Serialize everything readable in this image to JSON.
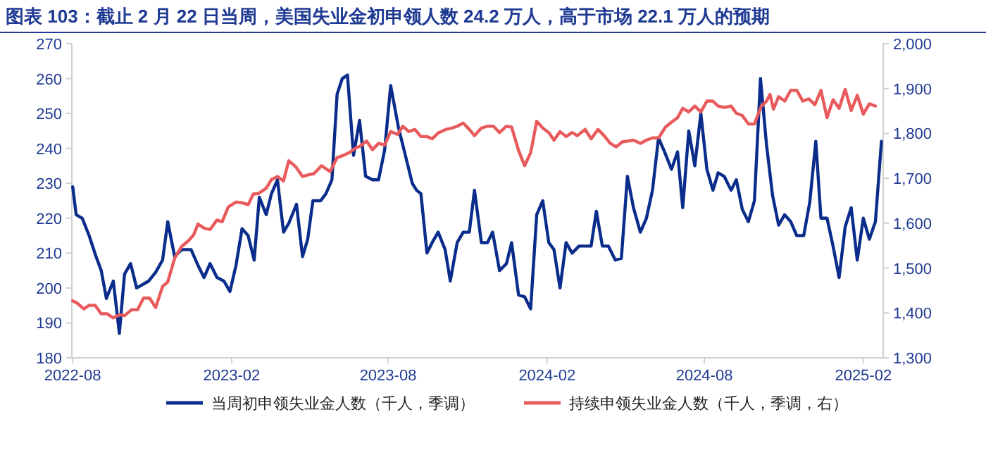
{
  "chart_data": {
    "type": "line",
    "title": "图表 103：截止 2 月 22 日当周，美国失业金初申领人数 24.2 万人，高于市场 22.1 万人的预期",
    "xlim": [
      "2022-07-31",
      "2025-02-24"
    ],
    "xticks": [
      "2022-08",
      "2023-02",
      "2023-08",
      "2024-02",
      "2024-08",
      "2025-02"
    ],
    "ylim": [
      180,
      270
    ],
    "yticks": [
      180,
      190,
      200,
      210,
      220,
      230,
      240,
      250,
      260,
      270
    ],
    "y2lim": [
      1300,
      2000
    ],
    "y2ticks": [
      {
        "value": 1300,
        "label": "1,300"
      },
      {
        "value": 1400,
        "label": "1,400"
      },
      {
        "value": 1500,
        "label": "1,500"
      },
      {
        "value": 1600,
        "label": "1,600"
      },
      {
        "value": 1700,
        "label": "1,700"
      },
      {
        "value": 1800,
        "label": "1,800"
      },
      {
        "value": 1900,
        "label": "1,900"
      },
      {
        "value": 2000,
        "label": "2,000"
      }
    ],
    "grid": false,
    "legend": "bottom",
    "marker": "none",
    "line_style": "solid",
    "series": [
      {
        "name": "当周初申领失业金人数（千人，季调）",
        "color": "#0a2d8c",
        "x": [
          "2022-08-01",
          "2022-08-05",
          "2022-08-12",
          "2022-08-20",
          "2022-08-28",
          "2022-09-03",
          "2022-09-09",
          "2022-09-17",
          "2022-09-24",
          "2022-09-30",
          "2022-10-07",
          "2022-10-14",
          "2022-10-28",
          "2022-11-05",
          "2022-11-13",
          "2022-11-19",
          "2022-11-27",
          "2022-12-05",
          "2022-12-16",
          "2022-12-24",
          "2022-12-31",
          "2023-01-07",
          "2023-01-15",
          "2023-01-23",
          "2023-01-30",
          "2023-02-06",
          "2023-02-13",
          "2023-02-20",
          "2023-02-27",
          "2023-03-05",
          "2023-03-13",
          "2023-03-19",
          "2023-03-26",
          "2023-04-02",
          "2023-04-08",
          "2023-04-17",
          "2023-04-24",
          "2023-04-30",
          "2023-05-06",
          "2023-05-15",
          "2023-05-21",
          "2023-05-28",
          "2023-06-03",
          "2023-06-09",
          "2023-06-15",
          "2023-06-22",
          "2023-06-29",
          "2023-07-06",
          "2023-07-14",
          "2023-07-21",
          "2023-07-28",
          "2023-08-04",
          "2023-08-13",
          "2023-08-21",
          "2023-08-29",
          "2023-09-03",
          "2023-09-08",
          "2023-09-15",
          "2023-09-21",
          "2023-09-28",
          "2023-10-06",
          "2023-10-12",
          "2023-10-20",
          "2023-10-27",
          "2023-11-03",
          "2023-11-09",
          "2023-11-17",
          "2023-11-24",
          "2023-11-30",
          "2023-12-08",
          "2023-12-16",
          "2023-12-22",
          "2023-12-30",
          "2024-01-06",
          "2024-01-13",
          "2024-01-20",
          "2024-01-27",
          "2024-02-03",
          "2024-02-09",
          "2024-02-16",
          "2024-02-23",
          "2024-03-01",
          "2024-03-09",
          "2024-03-23",
          "2024-03-29",
          "2024-04-05",
          "2024-04-12",
          "2024-04-20",
          "2024-04-27",
          "2024-05-04",
          "2024-05-11",
          "2024-05-19",
          "2024-05-26",
          "2024-06-02",
          "2024-06-09",
          "2024-06-16",
          "2024-06-24",
          "2024-07-01",
          "2024-07-07",
          "2024-07-14",
          "2024-07-21",
          "2024-07-28",
          "2024-08-04",
          "2024-08-11",
          "2024-08-17",
          "2024-08-24",
          "2024-09-01",
          "2024-09-07",
          "2024-09-14",
          "2024-09-21",
          "2024-09-28",
          "2024-10-05",
          "2024-10-12",
          "2024-10-19",
          "2024-10-26",
          "2024-11-02",
          "2024-11-09",
          "2024-11-16",
          "2024-11-24",
          "2024-12-01",
          "2024-12-08",
          "2024-12-14",
          "2024-12-21",
          "2024-12-28",
          "2025-01-04",
          "2025-01-11",
          "2025-01-18",
          "2025-01-25",
          "2025-02-01",
          "2025-02-08",
          "2025-02-15",
          "2025-02-22"
        ],
        "values": [
          229,
          221,
          220,
          215,
          209,
          205,
          197,
          202,
          187,
          204,
          207,
          200,
          202,
          204.5,
          208,
          219,
          209,
          211,
          211,
          206.5,
          203,
          207,
          203,
          202,
          199,
          206.5,
          217,
          215,
          208,
          226,
          221,
          227,
          231,
          216,
          218.5,
          224,
          209,
          214,
          225,
          225,
          227,
          231,
          255.5,
          260,
          261,
          238,
          248,
          232,
          231,
          231,
          239.5,
          258,
          246,
          238,
          230,
          228,
          227,
          210,
          213,
          216,
          211,
          202,
          213,
          216,
          216,
          228,
          213,
          213,
          216,
          205,
          207,
          213,
          198,
          197.5,
          194,
          221,
          225,
          213,
          211,
          200,
          213,
          210,
          212,
          212,
          222,
          212,
          212,
          208,
          208.5,
          232,
          223,
          216,
          220,
          228,
          243,
          239,
          234,
          239,
          223,
          245,
          235,
          250,
          234,
          228,
          233,
          232,
          228,
          231,
          222.5,
          219,
          225,
          260,
          241,
          226.5,
          218,
          221,
          219,
          215,
          215,
          224.5,
          242,
          220,
          220,
          212,
          203,
          217.5,
          223,
          208,
          220,
          214,
          219,
          242
        ]
      },
      {
        "name": "持续申领失业金人数（千人，季调，右）",
        "color": "#e85a5c",
        "axis": "y2",
        "x": [
          "2022-08-01",
          "2022-08-06",
          "2022-08-14",
          "2022-08-20",
          "2022-08-27",
          "2022-09-03",
          "2022-09-10",
          "2022-09-17",
          "2022-09-24",
          "2022-09-30",
          "2022-10-08",
          "2022-10-15",
          "2022-10-22",
          "2022-10-29",
          "2022-11-05",
          "2022-11-13",
          "2022-11-19",
          "2022-11-27",
          "2022-12-05",
          "2022-12-13",
          "2022-12-19",
          "2022-12-24",
          "2022-12-31",
          "2023-01-07",
          "2023-01-15",
          "2023-01-21",
          "2023-01-28",
          "2023-02-06",
          "2023-02-14",
          "2023-02-20",
          "2023-02-26",
          "2023-03-04",
          "2023-03-13",
          "2023-03-19",
          "2023-03-26",
          "2023-04-02",
          "2023-04-08",
          "2023-04-16",
          "2023-04-24",
          "2023-05-01",
          "2023-05-07",
          "2023-05-16",
          "2023-05-26",
          "2023-06-03",
          "2023-06-10",
          "2023-06-17",
          "2023-06-24",
          "2023-06-30",
          "2023-07-07",
          "2023-07-14",
          "2023-07-21",
          "2023-07-28",
          "2023-08-04",
          "2023-08-12",
          "2023-08-18",
          "2023-08-25",
          "2023-09-01",
          "2023-09-08",
          "2023-09-15",
          "2023-09-21",
          "2023-09-28",
          "2023-10-07",
          "2023-10-14",
          "2023-10-20",
          "2023-10-27",
          "2023-11-03",
          "2023-11-09",
          "2023-11-17",
          "2023-11-24",
          "2023-12-01",
          "2023-12-08",
          "2023-12-16",
          "2023-12-22",
          "2023-12-30",
          "2024-01-06",
          "2024-01-13",
          "2024-01-20",
          "2024-01-27",
          "2024-02-03",
          "2024-02-09",
          "2024-02-16",
          "2024-02-23",
          "2024-03-01",
          "2024-03-07",
          "2024-03-16",
          "2024-03-23",
          "2024-03-31",
          "2024-04-07",
          "2024-04-14",
          "2024-04-21",
          "2024-04-28",
          "2024-05-11",
          "2024-05-19",
          "2024-05-26",
          "2024-06-02",
          "2024-06-09",
          "2024-06-17",
          "2024-06-24",
          "2024-07-01",
          "2024-07-07",
          "2024-07-14",
          "2024-07-21",
          "2024-07-28",
          "2024-08-04",
          "2024-08-11",
          "2024-08-17",
          "2024-08-24",
          "2024-09-01",
          "2024-09-07",
          "2024-09-14",
          "2024-09-21",
          "2024-09-28",
          "2024-10-06",
          "2024-10-12",
          "2024-10-16",
          "2024-10-20",
          "2024-10-26",
          "2024-11-02",
          "2024-11-09",
          "2024-11-16",
          "2024-11-23",
          "2024-11-30",
          "2024-12-07",
          "2024-12-14",
          "2024-12-21",
          "2024-12-28",
          "2025-01-04",
          "2025-01-11",
          "2025-01-18",
          "2025-01-25",
          "2025-02-01",
          "2025-02-08",
          "2025-02-15"
        ],
        "values": [
          1427,
          1422,
          1409,
          1417,
          1417,
          1398,
          1398,
          1389,
          1396,
          1394,
          1407,
          1407,
          1433,
          1433,
          1412,
          1459,
          1469,
          1522,
          1548,
          1561,
          1574,
          1598,
          1589,
          1586,
          1607,
          1603,
          1636,
          1647,
          1645,
          1641,
          1665,
          1666,
          1678,
          1697,
          1704,
          1694,
          1739,
          1726,
          1704,
          1708,
          1710,
          1728,
          1715,
          1746,
          1751,
          1757,
          1767,
          1772,
          1783,
          1764,
          1778,
          1774,
          1804,
          1798,
          1816,
          1804,
          1809,
          1793,
          1793,
          1788,
          1801,
          1809,
          1812,
          1816,
          1823,
          1809,
          1795,
          1812,
          1816,
          1816,
          1802,
          1816,
          1814,
          1762,
          1728,
          1757,
          1827,
          1812,
          1802,
          1785,
          1804,
          1793,
          1802,
          1795,
          1809,
          1788,
          1809,
          1795,
          1778,
          1770,
          1781,
          1785,
          1778,
          1785,
          1790,
          1790,
          1814,
          1825,
          1835,
          1856,
          1848,
          1861,
          1848,
          1872,
          1872,
          1861,
          1858,
          1861,
          1845,
          1840,
          1821,
          1821,
          1861,
          1872,
          1887,
          1854,
          1882,
          1872,
          1896,
          1896,
          1872,
          1877,
          1864,
          1896,
          1835,
          1875,
          1856,
          1898,
          1851,
          1885,
          1843,
          1866,
          1861
        ]
      }
    ]
  }
}
